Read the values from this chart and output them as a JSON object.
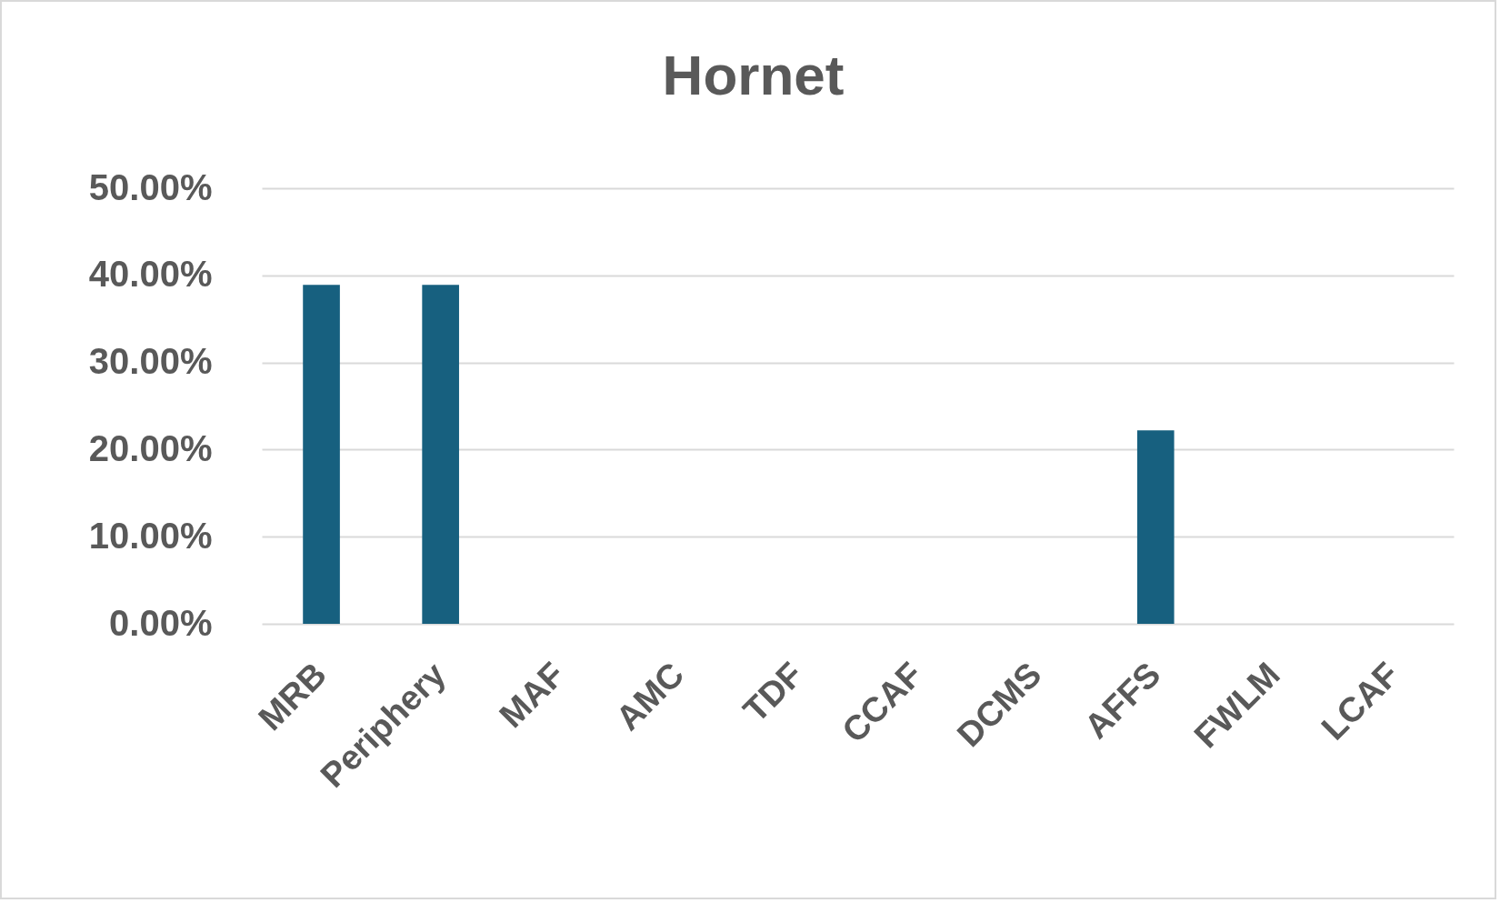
{
  "chart_data": {
    "type": "bar",
    "title": "Hornet",
    "categories": [
      "MRB",
      "Periphery",
      "MAF",
      "AMC",
      "TDF",
      "CCAF",
      "DCMS",
      "AFFS",
      "FWLM",
      "LCAF"
    ],
    "values": [
      38.9,
      38.9,
      0,
      0,
      0,
      0,
      0,
      22.2,
      0,
      0
    ],
    "color": "#17607f",
    "ylim": [
      0,
      50
    ],
    "yticks": [
      {
        "value": 0,
        "label": "0.00%"
      },
      {
        "value": 10,
        "label": "10.00%"
      },
      {
        "value": 20,
        "label": "20.00%"
      },
      {
        "value": 30,
        "label": "30.00%"
      },
      {
        "value": 40,
        "label": "40.00%"
      },
      {
        "value": 50,
        "label": "50.00%"
      }
    ],
    "grid": "y"
  }
}
